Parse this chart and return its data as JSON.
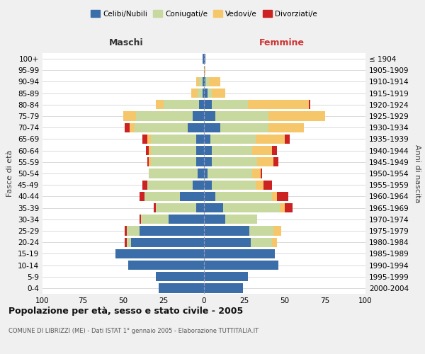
{
  "age_groups": [
    "0-4",
    "5-9",
    "10-14",
    "15-19",
    "20-24",
    "25-29",
    "30-34",
    "35-39",
    "40-44",
    "45-49",
    "50-54",
    "55-59",
    "60-64",
    "65-69",
    "70-74",
    "75-79",
    "80-84",
    "85-89",
    "90-94",
    "95-99",
    "100+"
  ],
  "birth_years": [
    "2000-2004",
    "1995-1999",
    "1990-1994",
    "1985-1989",
    "1980-1984",
    "1975-1979",
    "1970-1974",
    "1965-1969",
    "1960-1964",
    "1955-1959",
    "1950-1954",
    "1945-1949",
    "1940-1944",
    "1935-1939",
    "1930-1934",
    "1925-1929",
    "1920-1924",
    "1915-1919",
    "1910-1914",
    "1905-1909",
    "≤ 1904"
  ],
  "male": {
    "celibi": [
      28,
      30,
      47,
      55,
      45,
      40,
      22,
      5,
      15,
      7,
      4,
      5,
      5,
      5,
      10,
      7,
      3,
      1,
      1,
      0,
      1
    ],
    "coniugati": [
      0,
      0,
      0,
      0,
      3,
      8,
      17,
      25,
      22,
      28,
      30,
      28,
      28,
      28,
      33,
      35,
      22,
      3,
      2,
      0,
      0
    ],
    "vedovi": [
      0,
      0,
      0,
      0,
      0,
      0,
      0,
      0,
      0,
      0,
      0,
      1,
      1,
      2,
      3,
      8,
      5,
      4,
      2,
      0,
      0
    ],
    "divorziati": [
      0,
      0,
      0,
      0,
      1,
      1,
      1,
      1,
      3,
      3,
      0,
      1,
      2,
      3,
      3,
      0,
      0,
      0,
      0,
      0,
      0
    ]
  },
  "female": {
    "nubili": [
      24,
      27,
      46,
      44,
      29,
      28,
      13,
      12,
      7,
      5,
      2,
      5,
      5,
      4,
      10,
      7,
      5,
      2,
      1,
      0,
      1
    ],
    "coniugate": [
      0,
      0,
      0,
      0,
      13,
      15,
      20,
      35,
      35,
      27,
      28,
      28,
      25,
      28,
      30,
      33,
      22,
      3,
      2,
      0,
      0
    ],
    "vedove": [
      0,
      0,
      0,
      0,
      3,
      5,
      0,
      3,
      3,
      5,
      5,
      10,
      12,
      18,
      22,
      35,
      38,
      8,
      7,
      1,
      0
    ],
    "divorziate": [
      0,
      0,
      0,
      0,
      0,
      0,
      0,
      5,
      7,
      5,
      1,
      3,
      3,
      3,
      0,
      0,
      1,
      0,
      0,
      0,
      0
    ]
  },
  "colors": {
    "celibi": "#3b6ea8",
    "coniugati": "#c8d9a0",
    "vedovi": "#f5c76a",
    "divorziati": "#cc2222"
  },
  "xlim": [
    -100,
    100
  ],
  "xticks": [
    -100,
    -75,
    -50,
    -25,
    0,
    25,
    50,
    75,
    100
  ],
  "xtick_labels": [
    "100",
    "75",
    "50",
    "25",
    "0",
    "25",
    "50",
    "75",
    "100"
  ],
  "title": "Popolazione per età, sesso e stato civile - 2005",
  "subtitle": "COMUNE DI LIBRIZZI (ME) - Dati ISTAT 1° gennaio 2005 - Elaborazione TUTTITALIA.IT",
  "ylabel_left": "Fasce di età",
  "ylabel_right": "Anni di nascita",
  "legend_labels": [
    "Celibi/Nubili",
    "Coniugati/e",
    "Vedovi/e",
    "Divorziati/e"
  ],
  "maschi_label": "Maschi",
  "femmine_label": "Femmine",
  "background_color": "#f0f0f0",
  "plot_bg_color": "#ffffff"
}
